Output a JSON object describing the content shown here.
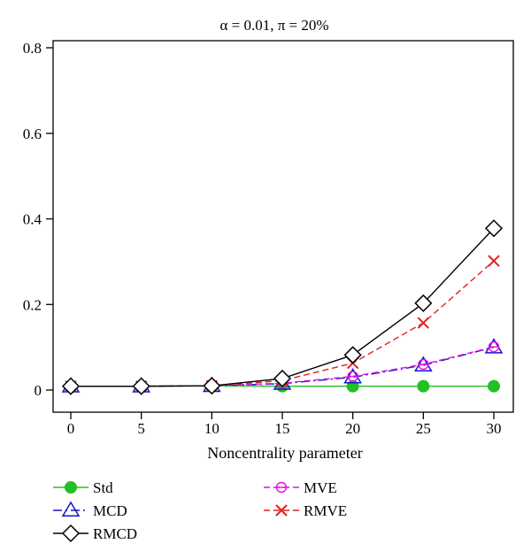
{
  "chart_data": {
    "type": "line",
    "title": "α = 0.01, π = 20%",
    "xlabel": "Noncentrality parameter",
    "ylabel": "",
    "xlim": [
      0,
      30
    ],
    "ylim": [
      0,
      0.8
    ],
    "x": [
      0,
      5,
      10,
      15,
      20,
      25,
      30
    ],
    "xticks": [
      "0",
      "5",
      "10",
      "15",
      "20",
      "25",
      "30"
    ],
    "yticks": [
      "0",
      "0.2",
      "0.4",
      "0.6",
      "0.8"
    ],
    "grid": false,
    "legend_position": "bottom",
    "series": [
      {
        "name": "Std",
        "values": [
          0.009,
          0.009,
          0.01,
          0.009,
          0.009,
          0.009,
          0.009
        ],
        "color": "#22c022",
        "marker": "filled-circle",
        "dash": "solid"
      },
      {
        "name": "MCD",
        "values": [
          0.009,
          0.009,
          0.01,
          0.015,
          0.03,
          0.058,
          0.1
        ],
        "color": "#1515cc",
        "marker": "triangle",
        "dash": "dashdot"
      },
      {
        "name": "RMCD",
        "values": [
          0.009,
          0.009,
          0.01,
          0.027,
          0.082,
          0.203,
          0.378
        ],
        "color": "#000000",
        "marker": "diamond",
        "dash": "solid"
      },
      {
        "name": "MVE",
        "values": [
          0.009,
          0.009,
          0.01,
          0.016,
          0.032,
          0.06,
          0.101
        ],
        "color": "#e010e0",
        "marker": "circle-bar",
        "dash": "dashed"
      },
      {
        "name": "RMVE",
        "values": [
          0.009,
          0.009,
          0.01,
          0.022,
          0.063,
          0.157,
          0.302
        ],
        "color": "#e02020",
        "marker": "cross",
        "dash": "dashed"
      }
    ]
  }
}
